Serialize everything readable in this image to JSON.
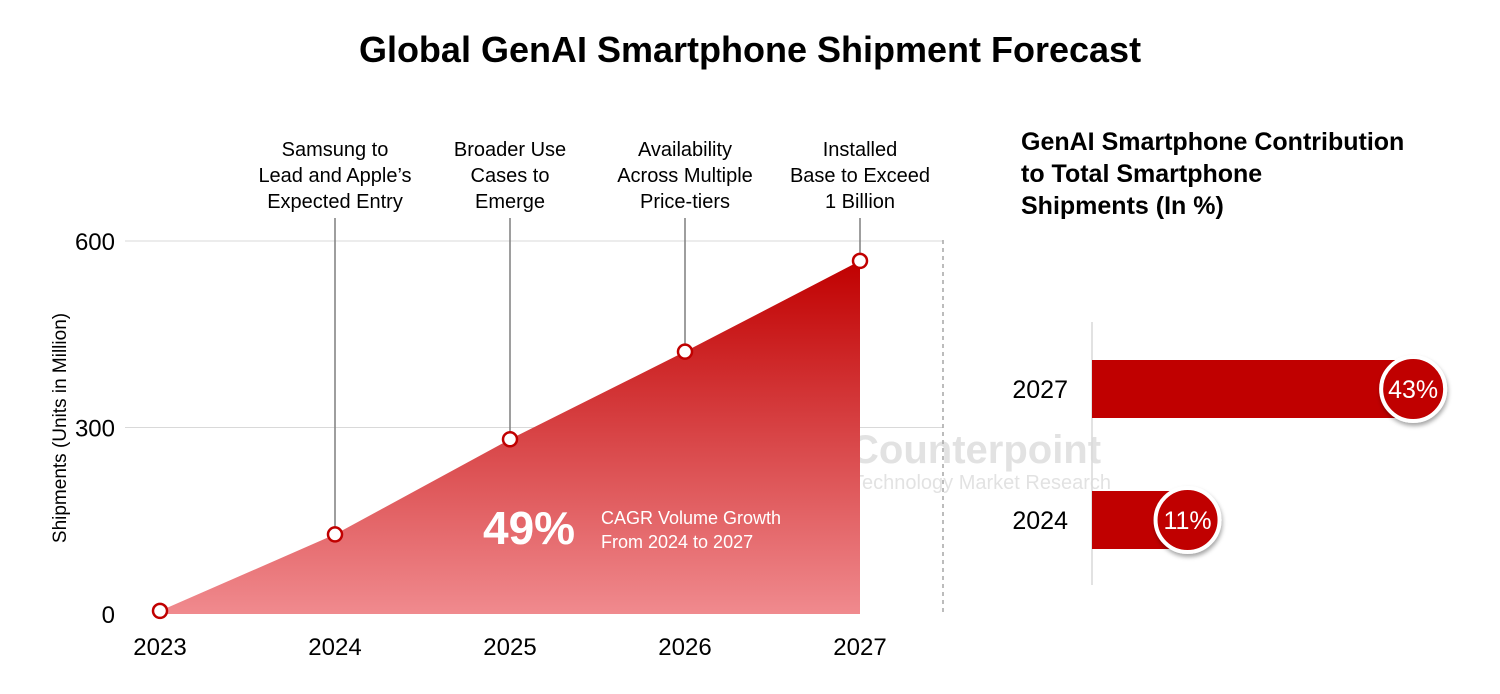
{
  "title": "Global GenAI Smartphone Shipment Forecast",
  "colors": {
    "accent": "#c00000",
    "area_light": "#f08a8e",
    "grid": "#d9d9d9",
    "watermark": "#d9d9d9"
  },
  "watermark": {
    "brand": "Counterpoint",
    "tagline": "Technology Market Research"
  },
  "chart_data": [
    {
      "type": "area",
      "title": "Global GenAI Smartphone Shipment Forecast",
      "ylabel": "Shipments (Units in Million)",
      "xlabel": "",
      "categories": [
        "2023",
        "2024",
        "2025",
        "2026",
        "2027"
      ],
      "values": [
        5,
        128,
        281,
        422,
        568
      ],
      "ylim": [
        0,
        600
      ],
      "yticks": [
        "0",
        "300",
        "600"
      ],
      "grid": true,
      "annotations": [
        {
          "x": "2024",
          "lines": [
            "Samsung to",
            "Lead and Apple’s",
            "Expected Entry"
          ]
        },
        {
          "x": "2025",
          "lines": [
            "Broader Use",
            "Cases to",
            "Emerge"
          ]
        },
        {
          "x": "2026",
          "lines": [
            "Availability",
            "Across Multiple",
            "Price-tiers"
          ]
        },
        {
          "x": "2027",
          "lines": [
            "Installed",
            "Base to Exceed",
            "1 Billion"
          ]
        }
      ],
      "callout": {
        "value": "49%",
        "lines": [
          "CAGR Volume Growth",
          "From 2024 to 2027"
        ]
      }
    },
    {
      "type": "bar",
      "orientation": "horizontal",
      "title": "GenAI Smartphone Contribution to Total Smartphone Shipments (In %)",
      "title_lines": [
        "GenAI Smartphone Contribution",
        "to Total Smartphone",
        "Shipments (In %)"
      ],
      "categories": [
        "2027",
        "2024"
      ],
      "values": [
        43,
        11
      ],
      "data_labels": [
        "43%",
        "11%"
      ]
    }
  ]
}
